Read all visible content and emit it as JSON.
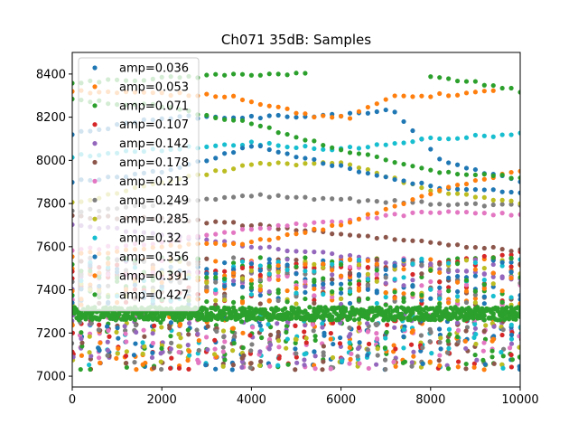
{
  "chart_data": {
    "type": "scatter",
    "title": "Ch071 35dB: Samples",
    "xlabel": "",
    "ylabel": "",
    "xlim": [
      0,
      10000
    ],
    "ylim": [
      6950,
      8500
    ],
    "x_ticks": [
      0,
      2000,
      4000,
      6000,
      8000,
      10000
    ],
    "y_ticks": [
      7000,
      7200,
      7400,
      7600,
      7800,
      8000,
      8200,
      8400
    ],
    "x_tick_labels": [
      "0",
      "2000",
      "4000",
      "6000",
      "8000",
      "10000"
    ],
    "y_tick_labels": [
      "7000",
      "7200",
      "7400",
      "7600",
      "7800",
      "8000",
      "8200",
      "8400"
    ],
    "grid": false,
    "legend_position": "top-left",
    "series": [
      {
        "name": "amp=0.036",
        "color": "#1f77b4",
        "anchors": [
          [
            0,
            8120
          ],
          [
            2000,
            8200
          ],
          [
            4000,
            8200
          ],
          [
            6000,
            8210
          ],
          [
            7200,
            8230
          ],
          [
            8200,
            8000
          ],
          [
            10000,
            7900
          ]
        ]
      },
      {
        "name": "amp=0.053",
        "color": "#ff7f0e",
        "anchors": [
          [
            0,
            8320
          ],
          [
            3500,
            8300
          ],
          [
            5500,
            8200
          ],
          [
            6200,
            8200
          ],
          [
            7200,
            8300
          ],
          [
            8000,
            8300
          ],
          [
            9500,
            8320
          ]
        ]
      },
      {
        "name": "amp=0.071",
        "color": "#2ca02c",
        "anchors": [
          [
            0,
            8360
          ],
          [
            2000,
            8380
          ],
          [
            4000,
            8400
          ],
          [
            5200,
            8400
          ],
          [
            5201,
            null
          ],
          [
            7700,
            null
          ],
          [
            7800,
            8390
          ],
          [
            9000,
            8360
          ],
          [
            10000,
            8320
          ]
        ]
      },
      {
        "name": "amp=0.107",
        "color": "#d62728",
        "anchors": [
          [
            0,
            7480
          ],
          [
            2000,
            7460
          ],
          [
            4000,
            7500
          ],
          [
            6000,
            7500
          ],
          [
            8000,
            7520
          ],
          [
            10000,
            7570
          ]
        ]
      },
      {
        "name": "amp=0.142",
        "color": "#9467bd",
        "anchors": [
          [
            0,
            7700
          ],
          [
            2000,
            7660
          ],
          [
            4000,
            7600
          ],
          [
            6000,
            7560
          ],
          [
            8000,
            7500
          ],
          [
            10000,
            7450
          ]
        ]
      },
      {
        "name": "amp=0.178",
        "color": "#8c564b",
        "anchors": [
          [
            0,
            7740
          ],
          [
            2000,
            7730
          ],
          [
            4000,
            7700
          ],
          [
            6000,
            7660
          ],
          [
            8000,
            7620
          ],
          [
            10000,
            7580
          ]
        ]
      },
      {
        "name": "amp=0.213",
        "color": "#e377c2",
        "anchors": [
          [
            0,
            7580
          ],
          [
            2000,
            7620
          ],
          [
            4000,
            7680
          ],
          [
            6000,
            7720
          ],
          [
            8000,
            7760
          ],
          [
            10000,
            7750
          ]
        ]
      },
      {
        "name": "amp=0.249",
        "color": "#7f7f7f",
        "anchors": [
          [
            0,
            7760
          ],
          [
            2000,
            7800
          ],
          [
            4000,
            7840
          ],
          [
            6000,
            7820
          ],
          [
            8000,
            7800
          ],
          [
            10000,
            7790
          ]
        ]
      },
      {
        "name": "amp=0.285",
        "color": "#bcbd22",
        "anchors": [
          [
            0,
            7800
          ],
          [
            2000,
            7900
          ],
          [
            4000,
            7980
          ],
          [
            6000,
            7990
          ],
          [
            8000,
            7860
          ],
          [
            10000,
            7800
          ]
        ]
      },
      {
        "name": "amp=0.32",
        "color": "#17becf",
        "anchors": [
          [
            0,
            8020
          ],
          [
            2000,
            8050
          ],
          [
            4000,
            8080
          ],
          [
            6000,
            8050
          ],
          [
            8000,
            8100
          ],
          [
            10000,
            8120
          ]
        ]
      },
      {
        "name": "amp=0.356",
        "color": "#1f77b4",
        "anchors": [
          [
            0,
            7900
          ],
          [
            2000,
            7950
          ],
          [
            3000,
            8000
          ],
          [
            4000,
            8070
          ],
          [
            6000,
            7970
          ],
          [
            8000,
            7880
          ],
          [
            10000,
            7850
          ]
        ]
      },
      {
        "name": "amp=0.391",
        "color": "#ff7f0e",
        "anchors": [
          [
            0,
            7560
          ],
          [
            2000,
            7600
          ],
          [
            4000,
            7620
          ],
          [
            6000,
            7700
          ],
          [
            8000,
            7850
          ],
          [
            10000,
            7950
          ]
        ]
      },
      {
        "name": "amp=0.427",
        "color": "#2ca02c",
        "anchors": [
          [
            0,
            8280
          ],
          [
            2000,
            8250
          ],
          [
            4000,
            8170
          ],
          [
            6000,
            8050
          ],
          [
            8000,
            7950
          ],
          [
            10000,
            7920
          ]
        ]
      }
    ],
    "dense_band": {
      "color": "#2ca02c",
      "y_range": [
        7260,
        7320
      ]
    },
    "lower_cluster": {
      "y_range": [
        7030,
        7290
      ]
    }
  }
}
